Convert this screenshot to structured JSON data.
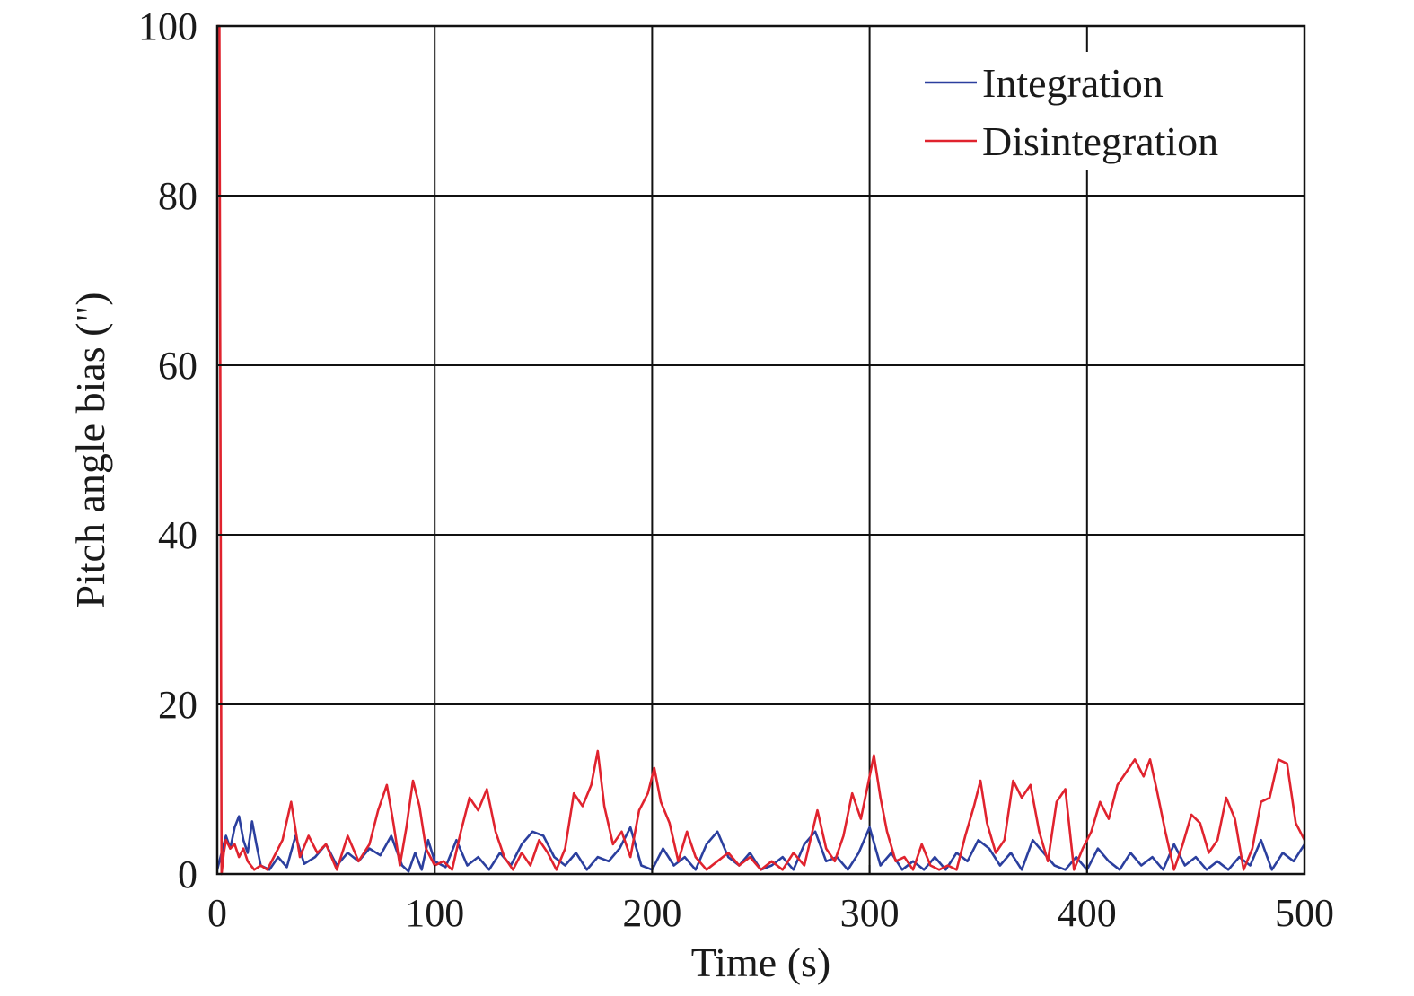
{
  "chart_data": {
    "type": "line",
    "title": "",
    "xlabel": "Time (s)",
    "ylabel": "Pitch angle bias (\")",
    "xlim": [
      0,
      500
    ],
    "ylim": [
      0,
      100
    ],
    "xticks": [
      0,
      100,
      200,
      300,
      400,
      500
    ],
    "yticks": [
      0,
      20,
      40,
      60,
      80,
      100
    ],
    "xtick_labels": [
      "0",
      "100",
      "200",
      "300",
      "400",
      "500"
    ],
    "ytick_labels": [
      "0",
      "20",
      "40",
      "60",
      "80",
      "100"
    ],
    "grid": true,
    "legend": {
      "placement": "top-right"
    },
    "series": [
      {
        "name": "Integration",
        "color": "#2b3f9e",
        "x": [
          0,
          2,
          4,
          6,
          8,
          10,
          12,
          14,
          16,
          18,
          20,
          24,
          28,
          32,
          36,
          40,
          45,
          50,
          55,
          60,
          65,
          70,
          75,
          80,
          85,
          88,
          91,
          94,
          97,
          100,
          105,
          110,
          115,
          120,
          125,
          130,
          135,
          140,
          145,
          150,
          155,
          160,
          165,
          170,
          175,
          180,
          185,
          190,
          195,
          200,
          205,
          210,
          215,
          220,
          225,
          230,
          235,
          240,
          245,
          250,
          255,
          260,
          265,
          270,
          275,
          280,
          285,
          290,
          295,
          300,
          305,
          310,
          315,
          320,
          325,
          330,
          335,
          340,
          345,
          350,
          355,
          360,
          365,
          370,
          375,
          380,
          385,
          390,
          395,
          400,
          405,
          410,
          415,
          420,
          425,
          430,
          435,
          440,
          445,
          450,
          455,
          460,
          465,
          470,
          475,
          480,
          485,
          490,
          495,
          500
        ],
        "y": [
          0.5,
          2.5,
          4.5,
          3.0,
          5.5,
          6.8,
          4.0,
          2.5,
          6.2,
          3.5,
          1.0,
          0.5,
          2.0,
          0.8,
          4.5,
          1.2,
          2.0,
          3.5,
          1.0,
          2.5,
          1.5,
          3.0,
          2.2,
          4.5,
          1.0,
          0.3,
          2.5,
          0.5,
          4.0,
          1.5,
          0.8,
          4.0,
          1.0,
          2.0,
          0.5,
          2.5,
          1.0,
          3.5,
          5.0,
          4.5,
          2.0,
          1.0,
          2.5,
          0.5,
          2.0,
          1.5,
          3.0,
          5.5,
          1.0,
          0.5,
          3.0,
          1.0,
          2.0,
          0.5,
          3.5,
          5.0,
          2.0,
          1.0,
          2.5,
          0.5,
          1.0,
          2.0,
          0.5,
          3.5,
          5.0,
          1.5,
          2.0,
          0.5,
          2.5,
          5.5,
          1.0,
          2.5,
          0.5,
          1.5,
          0.5,
          2.0,
          0.5,
          2.5,
          1.5,
          4.0,
          3.0,
          1.0,
          2.5,
          0.5,
          4.0,
          2.5,
          1.0,
          0.5,
          2.0,
          0.5,
          3.0,
          1.5,
          0.5,
          2.5,
          1.0,
          2.0,
          0.5,
          3.5,
          1.0,
          2.0,
          0.5,
          1.5,
          0.5,
          2.0,
          1.0,
          4.0,
          0.5,
          2.5,
          1.5,
          3.5
        ]
      },
      {
        "name": "Disintegration",
        "color": "#e0232e",
        "x": [
          0,
          1,
          2,
          3,
          4,
          6,
          8,
          10,
          12,
          14,
          17,
          20,
          23,
          26,
          30,
          34,
          38,
          42,
          46,
          50,
          55,
          60,
          65,
          70,
          74,
          78,
          81,
          84,
          87,
          90,
          93,
          96,
          100,
          104,
          108,
          112,
          116,
          120,
          124,
          128,
          132,
          136,
          140,
          144,
          148,
          152,
          156,
          160,
          164,
          168,
          172,
          175,
          178,
          182,
          186,
          190,
          194,
          198,
          201,
          204,
          208,
          212,
          216,
          220,
          225,
          230,
          235,
          240,
          245,
          250,
          255,
          260,
          265,
          270,
          276,
          280,
          284,
          288,
          292,
          296,
          300,
          302,
          305,
          308,
          312,
          316,
          320,
          324,
          328,
          332,
          336,
          340,
          344,
          348,
          351,
          354,
          358,
          362,
          366,
          370,
          374,
          378,
          382,
          386,
          390,
          394,
          398,
          402,
          406,
          410,
          414,
          418,
          422,
          426,
          429,
          432,
          436,
          440,
          444,
          448,
          452,
          456,
          460,
          464,
          468,
          472,
          476,
          480,
          484,
          488,
          492,
          496,
          500
        ],
        "y": [
          100,
          100,
          0,
          2.5,
          4.0,
          3.0,
          3.5,
          2.0,
          3.0,
          1.5,
          0.5,
          1.0,
          0.5,
          2.0,
          4.0,
          8.5,
          2.0,
          4.5,
          2.5,
          3.5,
          0.5,
          4.5,
          1.5,
          3.5,
          7.5,
          10.5,
          6.0,
          1.0,
          5.5,
          11.0,
          8.0,
          3.0,
          1.0,
          1.5,
          0.5,
          5.0,
          9.0,
          7.5,
          10.0,
          5.0,
          2.0,
          0.5,
          2.5,
          1.0,
          4.0,
          2.5,
          0.5,
          3.0,
          9.5,
          8.0,
          10.5,
          14.5,
          8.0,
          3.5,
          5.0,
          2.0,
          7.5,
          9.5,
          12.5,
          8.5,
          6.0,
          1.5,
          5.0,
          2.0,
          0.5,
          1.5,
          2.5,
          1.0,
          2.0,
          0.5,
          1.5,
          0.5,
          2.5,
          1.0,
          7.5,
          3.0,
          1.5,
          4.5,
          9.5,
          6.5,
          11.5,
          14.0,
          9.0,
          5.0,
          1.5,
          2.0,
          0.5,
          3.5,
          1.0,
          0.5,
          1.0,
          0.5,
          4.5,
          8.0,
          11.0,
          6.0,
          2.5,
          4.0,
          11.0,
          9.0,
          10.5,
          5.0,
          1.5,
          8.5,
          10.0,
          0.5,
          3.0,
          5.0,
          8.5,
          6.5,
          10.5,
          12.0,
          13.5,
          11.5,
          13.5,
          10.0,
          5.0,
          0.5,
          3.5,
          7.0,
          6.0,
          2.5,
          4.0,
          9.0,
          6.5,
          0.5,
          3.0,
          8.5,
          9.0,
          13.5,
          13.0,
          6.0,
          4.0
        ]
      }
    ]
  }
}
